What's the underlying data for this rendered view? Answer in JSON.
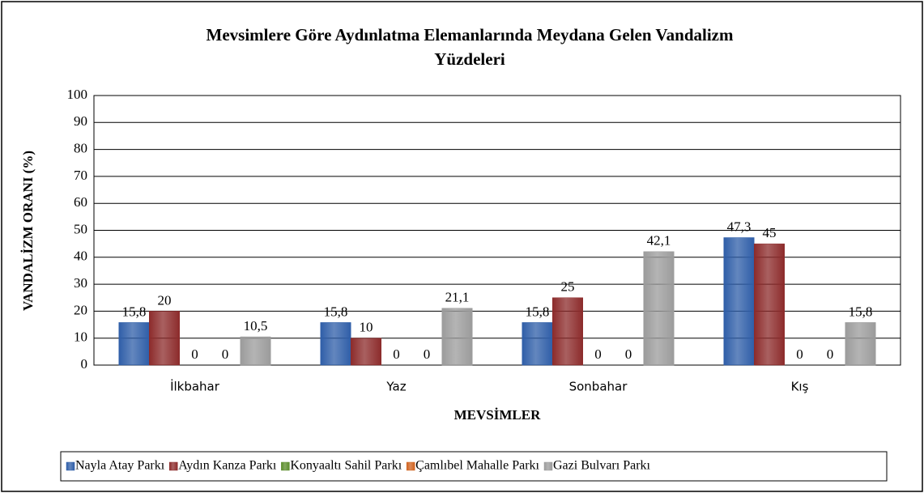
{
  "chart_data": {
    "type": "bar",
    "title": "Mevsimlere Göre Aydınlatma Elemanlarında Meydana Gelen Vandalizm",
    "title_line2": "Yüzdeleri",
    "xlabel": "MEVSİMLER",
    "ylabel": "VANDALİZM ORANI (%)",
    "categories": [
      "İlkbahar",
      "Yaz",
      "Sonbahar",
      "Kış"
    ],
    "series": [
      {
        "name": "Nayla Atay Parkı",
        "color": "#2f5ea8",
        "values": [
          15.8,
          15.8,
          15.8,
          47.3
        ],
        "value_labels": [
          "15,8",
          "15,8",
          "15,8",
          "47,3"
        ]
      },
      {
        "name": "Aydın Kanza Parkı",
        "color": "#8c2b2b",
        "values": [
          20,
          10,
          25,
          45
        ]
      },
      {
        "name": "Konyaaltı Sahil Parkı",
        "color": "#5b8c2a",
        "values": [
          0,
          0,
          0,
          0
        ]
      },
      {
        "name": "Çamlıbel Mahalle Parkı",
        "color": "#d0621f",
        "values": [
          0,
          0,
          0,
          0
        ]
      },
      {
        "name": "Gazi Bulvarı Parkı",
        "color": "#9b9b9b",
        "values": [
          10.5,
          21.1,
          42.1,
          15.8
        ],
        "value_labels": [
          "10,5",
          "21,1",
          "42,1",
          "15,8"
        ]
      }
    ],
    "ylim": [
      0,
      100
    ],
    "yticks": [
      0,
      10,
      20,
      30,
      40,
      50,
      60,
      70,
      80,
      90,
      100
    ],
    "grid": true,
    "legend": "bottom"
  }
}
